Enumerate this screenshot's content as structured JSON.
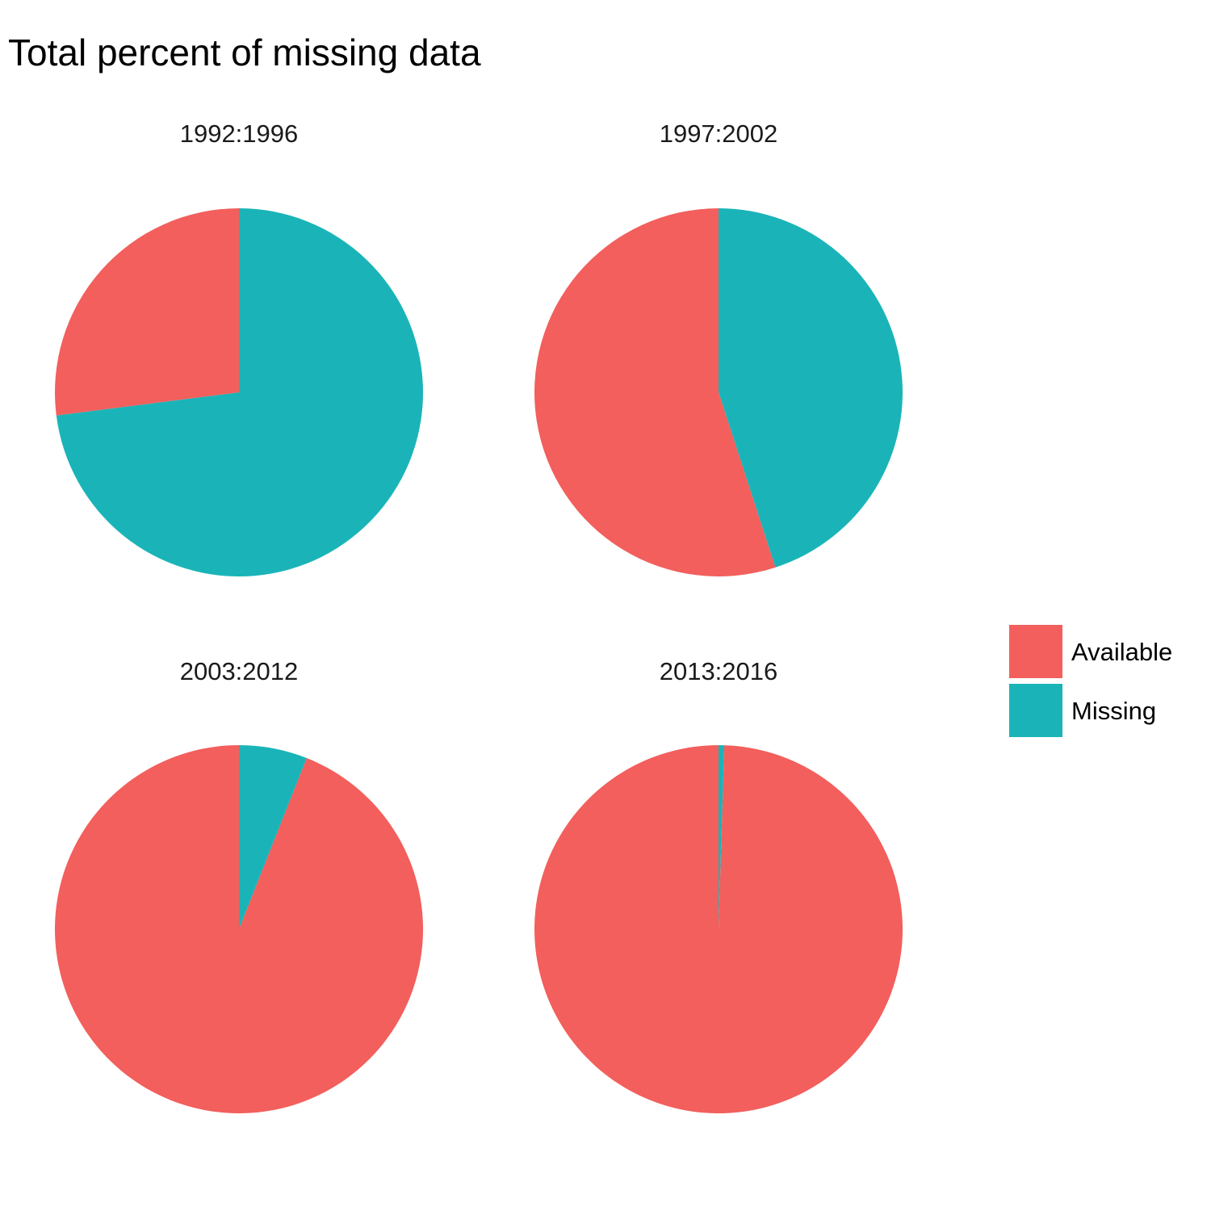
{
  "chart_data": {
    "type": "pie",
    "title": "Total percent of missing data",
    "legend": {
      "position": "right",
      "entries": [
        {
          "label": "Available",
          "color": "#F25F5C"
        },
        {
          "label": "Missing",
          "color": "#1AB4B8"
        }
      ]
    },
    "panels": [
      {
        "label": "1992:1996",
        "slices": [
          {
            "category": "Available",
            "percent": 27
          },
          {
            "category": "Missing",
            "percent": 73
          }
        ]
      },
      {
        "label": "1997:2002",
        "slices": [
          {
            "category": "Available",
            "percent": 55
          },
          {
            "category": "Missing",
            "percent": 45
          }
        ]
      },
      {
        "label": "2003:2012",
        "slices": [
          {
            "category": "Available",
            "percent": 94
          },
          {
            "category": "Missing",
            "percent": 6
          }
        ]
      },
      {
        "label": "2013:2016",
        "slices": [
          {
            "category": "Available",
            "percent": 99.5
          },
          {
            "category": "Missing",
            "percent": 0.5
          }
        ]
      }
    ]
  }
}
